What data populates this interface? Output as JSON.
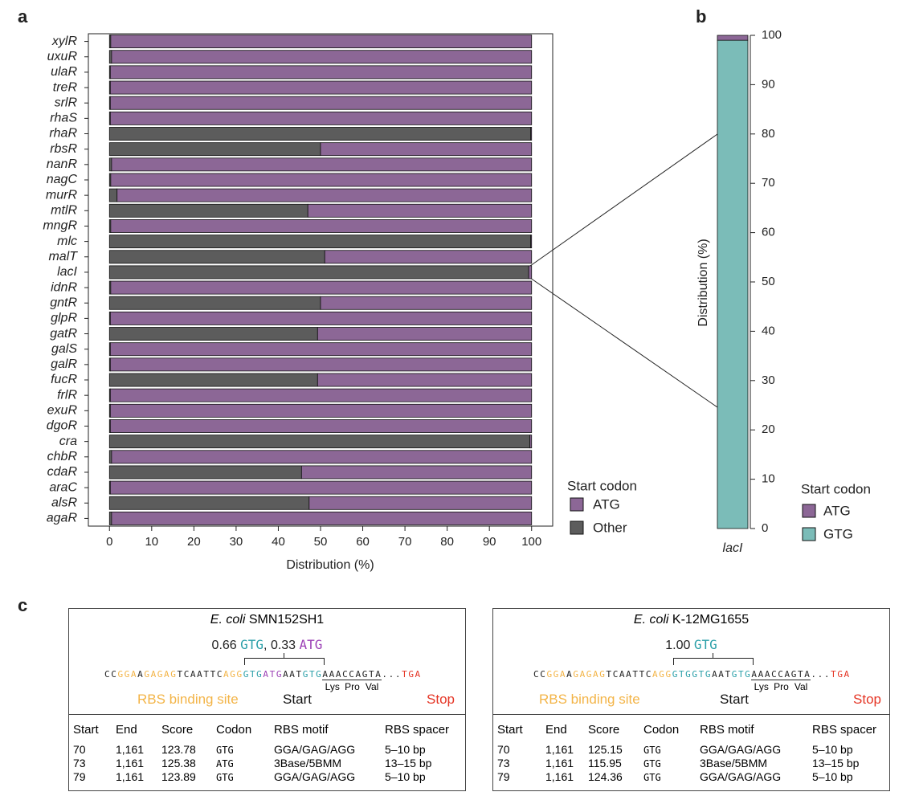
{
  "panel_labels": [
    "a",
    "b",
    "c"
  ],
  "chart_data": [
    {
      "type": "bar",
      "orientation": "horizontal",
      "stacked": true,
      "categories": [
        "xylR",
        "uxuR",
        "ulaR",
        "treR",
        "srlR",
        "rhaS",
        "rhaR",
        "rbsR",
        "nanR",
        "nagC",
        "murR",
        "mtlR",
        "mngR",
        "mlc",
        "malT",
        "lacI",
        "idnR",
        "gntR",
        "glpR",
        "gatR",
        "galS",
        "galR",
        "fucR",
        "frlR",
        "exuR",
        "dgoR",
        "cra",
        "chbR",
        "cdaR",
        "araC",
        "alsR",
        "agaR"
      ],
      "series": [
        {
          "name": "ATG",
          "color": "#8c6796",
          "values": [
            99.7,
            99.5,
            99.8,
            99.8,
            99.8,
            99.8,
            0.2,
            50,
            99.5,
            99.7,
            98.2,
            53,
            99.7,
            0.2,
            49,
            0.7,
            99.7,
            50,
            99.8,
            50.7,
            99.8,
            99.8,
            50.7,
            99.8,
            99.8,
            99.8,
            0.4,
            99.5,
            54.5,
            99.8,
            52.7,
            99.5
          ]
        },
        {
          "name": "Other",
          "color": "#5c5c5c",
          "values": [
            0.3,
            0.5,
            0.2,
            0.2,
            0.2,
            0.2,
            99.8,
            50,
            0.5,
            0.3,
            1.8,
            47,
            0.3,
            99.8,
            51,
            99.3,
            0.3,
            50,
            0.2,
            49.3,
            0.2,
            0.2,
            49.3,
            0.2,
            0.2,
            0.2,
            99.6,
            0.5,
            45.5,
            0.2,
            47.3,
            0.5
          ]
        }
      ],
      "x_label": "Distribution (%)",
      "xlim": [
        -5,
        105
      ],
      "xticks": [
        0,
        10,
        20,
        30,
        40,
        50,
        60,
        70,
        80,
        90,
        100
      ],
      "legend_title": "Start codon"
    },
    {
      "type": "bar",
      "orientation": "vertical",
      "stacked": true,
      "categories": [
        "lacI"
      ],
      "series": [
        {
          "name": "ATG",
          "color": "#8c6796",
          "values": [
            1
          ]
        },
        {
          "name": "GTG",
          "color": "#7bbcb8",
          "values": [
            99
          ]
        }
      ],
      "y_label": "Distribution (%)",
      "ylim": [
        0,
        100
      ],
      "yticks": [
        0,
        10,
        20,
        30,
        40,
        50,
        60,
        70,
        80,
        90,
        100
      ],
      "legend_title": "Start codon"
    }
  ],
  "panel_c": {
    "boxes": [
      {
        "title_italic": "E. coli",
        "title": "SMN152SH1",
        "ratio": [
          {
            "text": "0.66 ",
            "color": "#222222"
          },
          {
            "text": "GTG",
            "color": "#2a9fa8"
          },
          {
            "text": ", 0.33 ",
            "color": "#222222"
          },
          {
            "text": "ATG",
            "color": "#9b3fb5"
          }
        ],
        "sequence": [
          {
            "text": "CC",
            "color": "#222222"
          },
          {
            "text": "GGA",
            "color": "#f3b447"
          },
          {
            "text": "A",
            "color": "#222222"
          },
          {
            "text": "GAGAG",
            "color": "#f3b447"
          },
          {
            "text": "TCAATTC",
            "color": "#222222"
          },
          {
            "text": "AGG",
            "color": "#f3b447"
          },
          {
            "text": "GTG",
            "color": "#2a9fa8"
          },
          {
            "text": "ATG",
            "color": "#9b3fb5"
          },
          {
            "text": "AAT",
            "color": "#222222"
          },
          {
            "text": "GTG",
            "color": "#2a9fa8"
          },
          {
            "text": "AAA",
            "color": "#222222",
            "codon": "Lys"
          },
          {
            "text": "CCA",
            "color": "#222222",
            "codon": "Pro"
          },
          {
            "text": "GTA",
            "color": "#222222",
            "codon": "Val"
          },
          {
            "text": "...",
            "color": "#222222"
          },
          {
            "text": "TGA",
            "color": "#e53525"
          }
        ],
        "labels": [
          {
            "text": "RBS binding site",
            "color": "#f3b447"
          },
          {
            "text": "Start",
            "color": "#111111"
          },
          {
            "text": "Stop",
            "color": "#e53525"
          }
        ],
        "table": {
          "header": [
            "Start",
            "End",
            "Score",
            "Codon",
            "RBS motif",
            "RBS spacer"
          ],
          "rows": [
            [
              "70",
              "1,161",
              "123.78",
              "GTG",
              "GGA/GAG/AGG",
              "5–10 bp"
            ],
            [
              "73",
              "1,161",
              "125.38",
              "ATG",
              "3Base/5BMM",
              "13–15 bp"
            ],
            [
              "79",
              "1,161",
              "123.89",
              "GTG",
              "GGA/GAG/AGG",
              "5–10 bp"
            ]
          ]
        }
      },
      {
        "title_italic": "E. coli",
        "title": "K-12MG1655",
        "ratio": [
          {
            "text": "1.00 ",
            "color": "#222222"
          },
          {
            "text": "GTG",
            "color": "#2a9fa8"
          }
        ],
        "sequence": [
          {
            "text": "CC",
            "color": "#222222"
          },
          {
            "text": "GGA",
            "color": "#f3b447"
          },
          {
            "text": "A",
            "color": "#222222"
          },
          {
            "text": "GAGAG",
            "color": "#f3b447"
          },
          {
            "text": "TCAATTC",
            "color": "#222222"
          },
          {
            "text": "AGG",
            "color": "#f3b447"
          },
          {
            "text": "GTG",
            "color": "#2a9fa8"
          },
          {
            "text": "GTG",
            "color": "#2a9fa8"
          },
          {
            "text": "AAT",
            "color": "#222222"
          },
          {
            "text": "GTG",
            "color": "#2a9fa8"
          },
          {
            "text": "AAA",
            "color": "#222222",
            "codon": "Lys"
          },
          {
            "text": "CCA",
            "color": "#222222",
            "codon": "Pro"
          },
          {
            "text": "GTA",
            "color": "#222222",
            "codon": "Val"
          },
          {
            "text": "...",
            "color": "#222222"
          },
          {
            "text": "TGA",
            "color": "#e53525"
          }
        ],
        "labels": [
          {
            "text": "RBS binding site",
            "color": "#f3b447"
          },
          {
            "text": "Start",
            "color": "#111111"
          },
          {
            "text": "Stop",
            "color": "#e53525"
          }
        ],
        "table": {
          "header": [
            "Start",
            "End",
            "Score",
            "Codon",
            "RBS motif",
            "RBS spacer"
          ],
          "rows": [
            [
              "70",
              "1,161",
              "125.15",
              "GTG",
              "GGA/GAG/AGG",
              "5–10 bp"
            ],
            [
              "73",
              "1,161",
              "115.95",
              "GTG",
              "3Base/5BMM",
              "13–15 bp"
            ],
            [
              "79",
              "1,161",
              "124.36",
              "GTG",
              "GGA/GAG/AGG",
              "5–10 bp"
            ]
          ]
        }
      }
    ]
  }
}
